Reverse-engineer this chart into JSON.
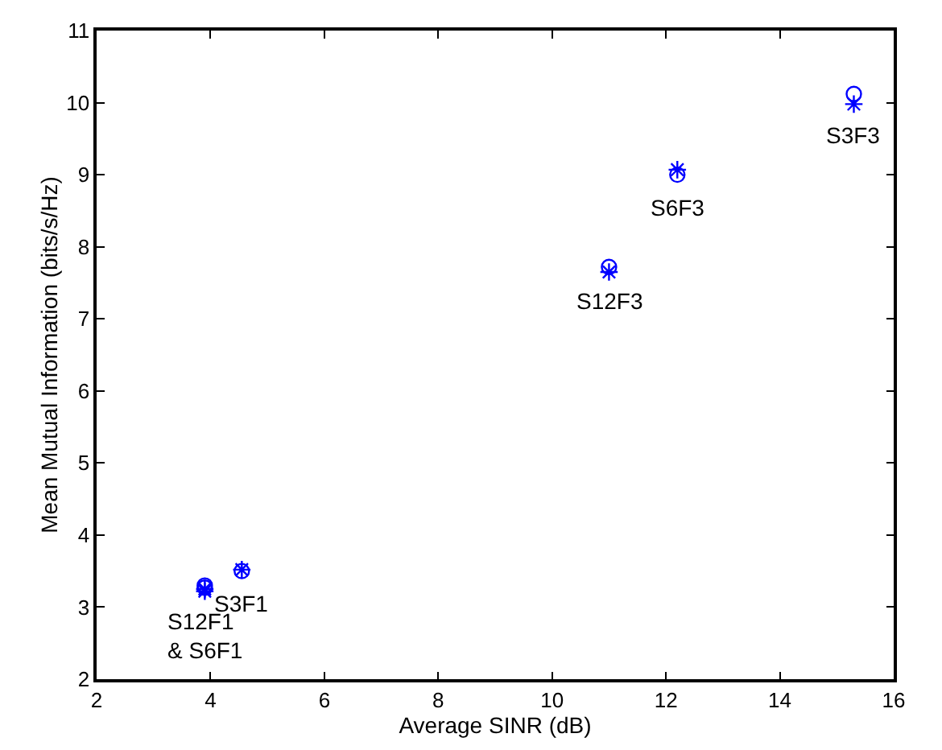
{
  "chart_data": {
    "type": "scatter",
    "xlabel": "Average SINR (dB)",
    "ylabel": "Mean Mutual Information (bits/s/Hz)",
    "series": [
      {
        "marker": "circle",
        "color": "#0000ff",
        "x": [
          3.9,
          3.9,
          4.55,
          11.0,
          12.2,
          15.3
        ],
        "values": [
          3.3,
          3.27,
          3.5,
          7.72,
          9.0,
          10.12
        ]
      },
      {
        "marker": "cross",
        "color": "#0000ff",
        "x": [
          3.9,
          3.9,
          4.55,
          11.0,
          12.2,
          15.3
        ],
        "values": [
          3.22,
          3.25,
          3.52,
          7.65,
          9.07,
          9.98
        ]
      }
    ],
    "annotations": [
      {
        "text": "S12F1\n& S6F1",
        "x": 3.9,
        "y": 3.25
      },
      {
        "text": "S3F1",
        "x": 4.55,
        "y": 3.5
      },
      {
        "text": "S12F3",
        "x": 11.0,
        "y": 7.7
      },
      {
        "text": "S6F3",
        "x": 12.2,
        "y": 9.0
      },
      {
        "text": "S3F3",
        "x": 15.3,
        "y": 10.0
      }
    ],
    "xlim": [
      2,
      16
    ],
    "xticks": [
      2,
      4,
      6,
      8,
      10,
      12,
      14,
      16
    ],
    "ylim": [
      2,
      11
    ],
    "yticks": [
      2,
      3,
      4,
      5,
      6,
      7,
      8,
      9,
      10,
      11
    ],
    "grid": false
  }
}
